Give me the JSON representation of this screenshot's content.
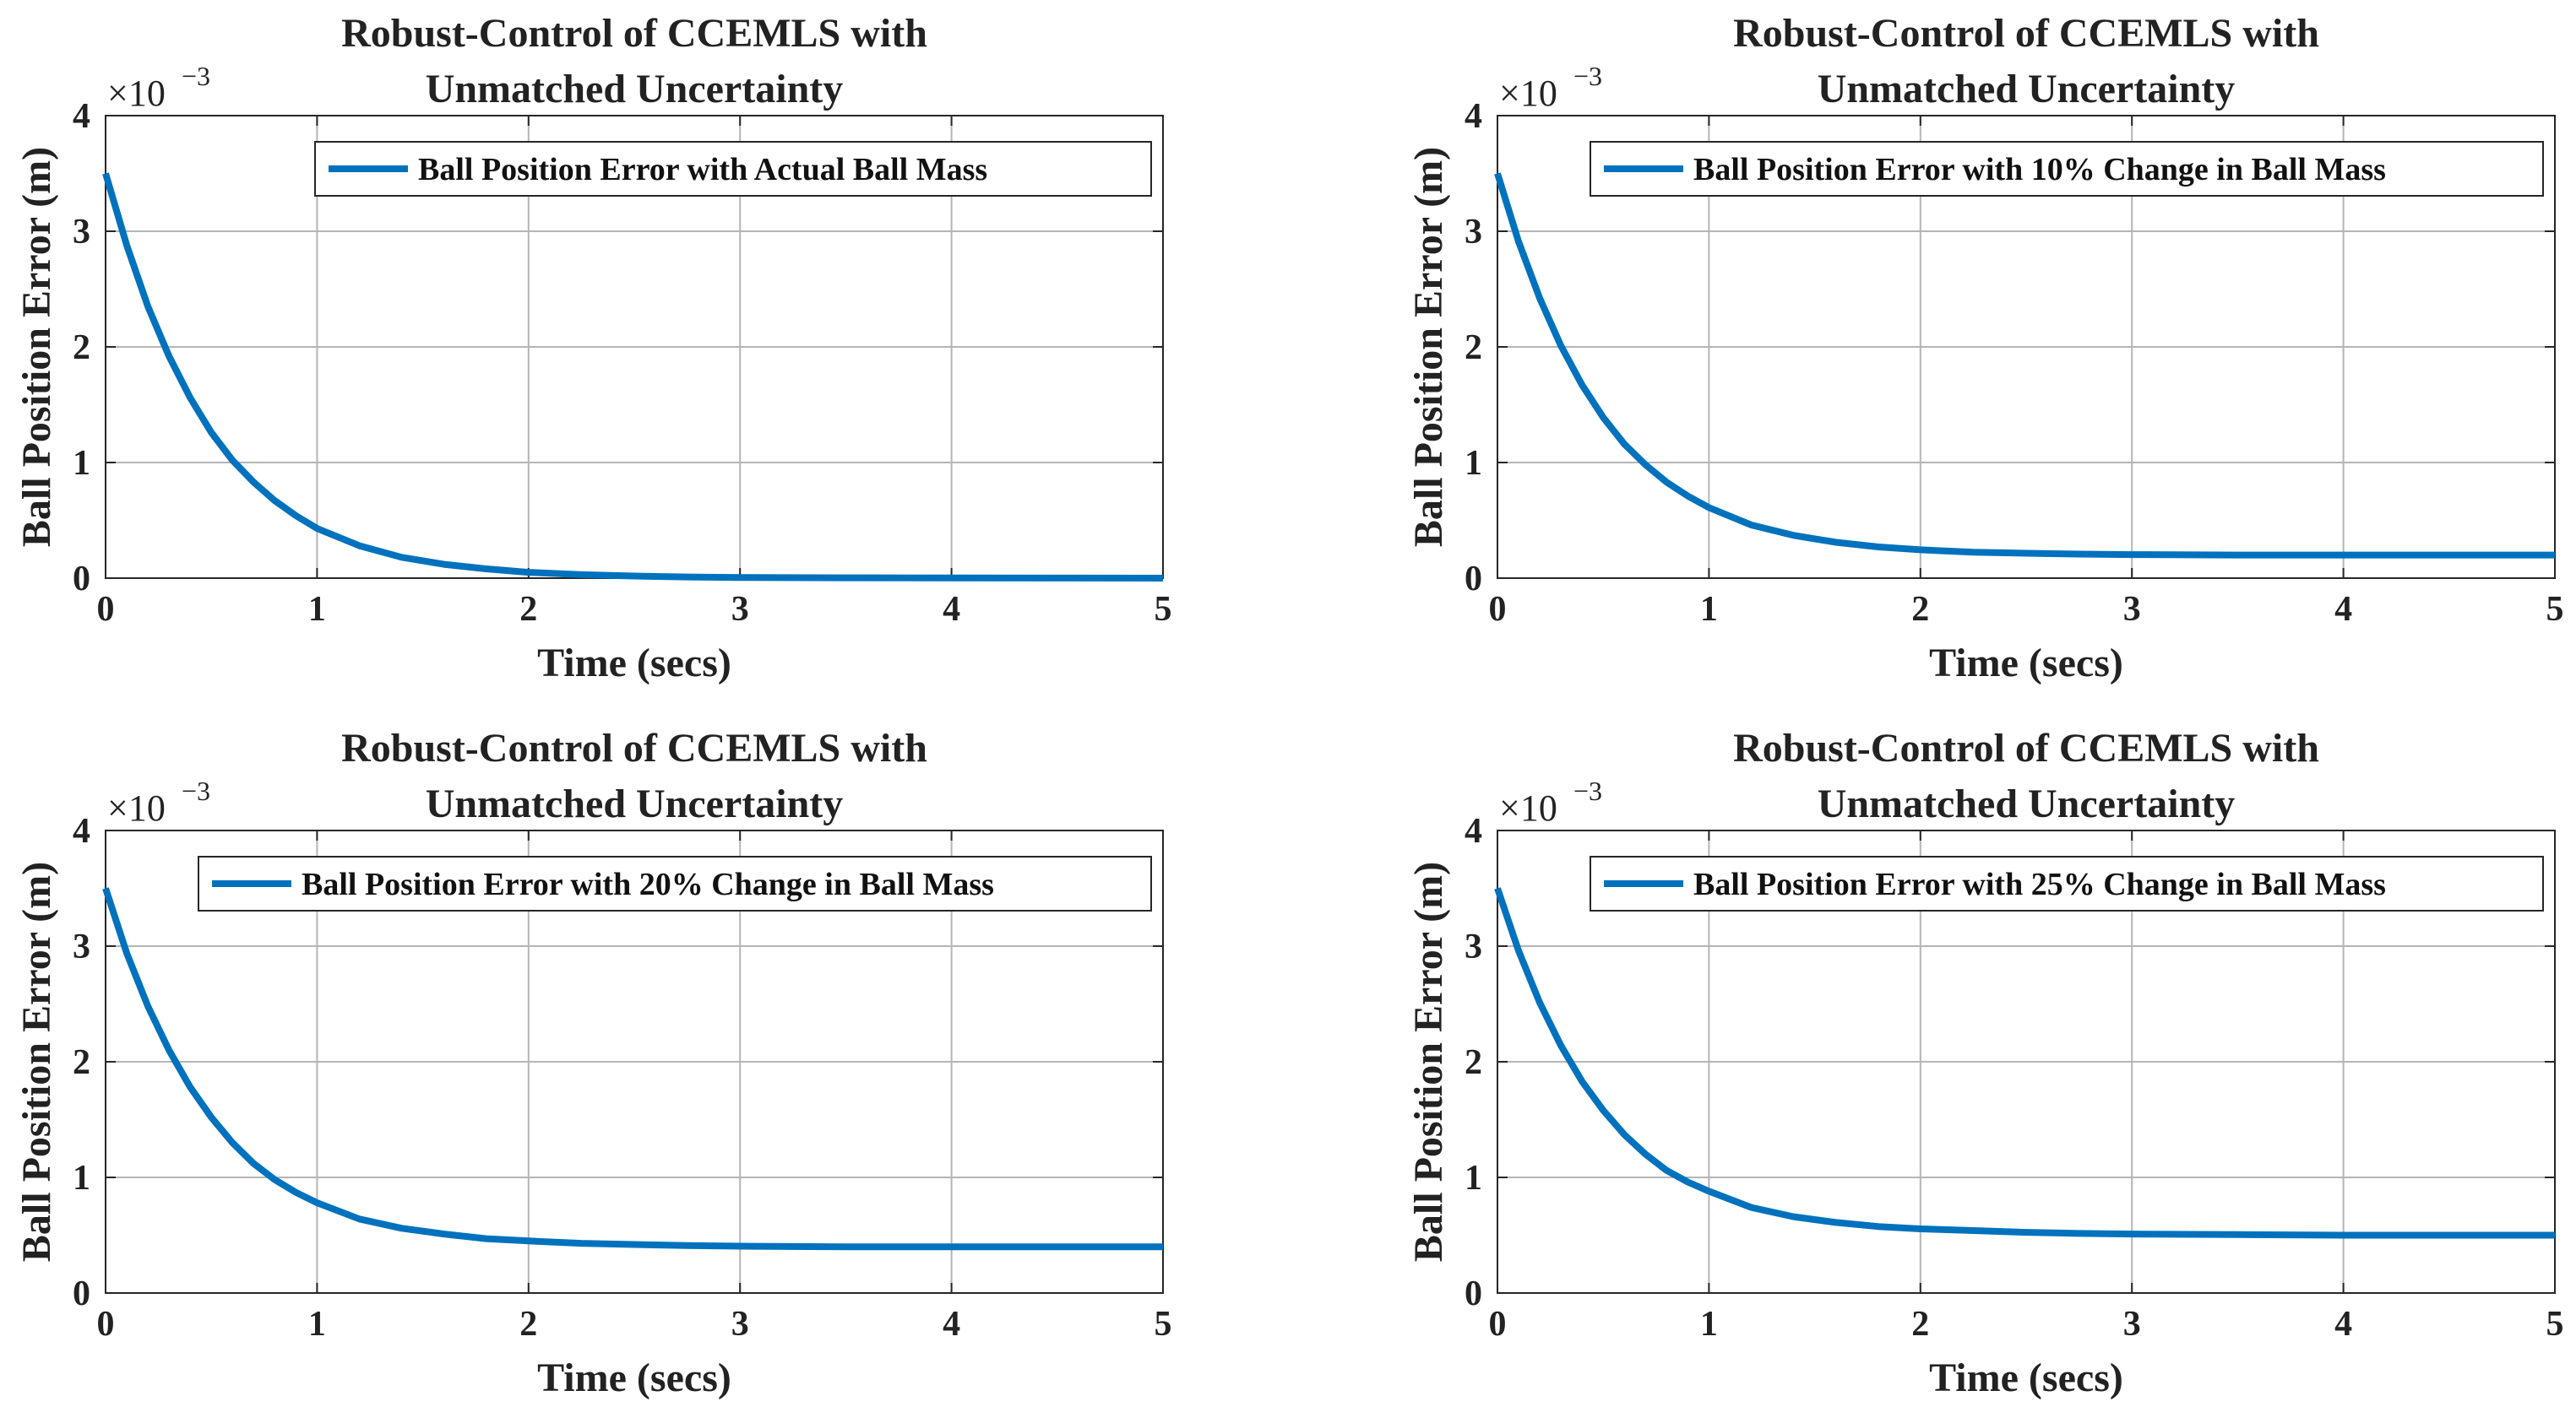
{
  "figure": {
    "line_color": "#0072BD"
  },
  "chart_data": [
    {
      "type": "line",
      "title_lines": [
        "Robust-Control of CCEMLS with",
        "Unmatched Uncertainty"
      ],
      "xlabel": "Time (secs)",
      "ylabel": "Ball Position Error (m)",
      "y_exponent_base": "×10",
      "y_exponent_power": "−3",
      "xlim": [
        0,
        5
      ],
      "ylim": [
        0,
        4
      ],
      "xticks": [
        "0",
        "1",
        "2",
        "3",
        "4",
        "5"
      ],
      "yticks": [
        "0",
        "1",
        "2",
        "3",
        "4"
      ],
      "grid": true,
      "legend_position": "top-right",
      "series": [
        {
          "name": "Ball Position Error with Actual Ball Mass",
          "x": [
            0,
            0.1,
            0.2,
            0.3,
            0.4,
            0.5,
            0.6,
            0.7,
            0.8,
            0.9,
            1.0,
            1.2,
            1.4,
            1.6,
            1.8,
            2.0,
            2.25,
            2.5,
            2.75,
            3.0,
            3.5,
            4.0,
            4.5,
            5.0
          ],
          "y": [
            3.5,
            2.88,
            2.35,
            1.92,
            1.56,
            1.26,
            1.02,
            0.83,
            0.67,
            0.54,
            0.43,
            0.28,
            0.18,
            0.12,
            0.08,
            0.05,
            0.03,
            0.018,
            0.01,
            0.006,
            0.003,
            0.002,
            0.001,
            0.0
          ]
        }
      ]
    },
    {
      "type": "line",
      "title_lines": [
        "Robust-Control of CCEMLS with",
        "Unmatched Uncertainty"
      ],
      "xlabel": "Time (secs)",
      "ylabel": "Ball Position Error (m)",
      "y_exponent_base": "×10",
      "y_exponent_power": "−3",
      "xlim": [
        0,
        5
      ],
      "ylim": [
        0,
        4
      ],
      "xticks": [
        "0",
        "1",
        "2",
        "3",
        "4",
        "5"
      ],
      "yticks": [
        "0",
        "1",
        "2",
        "3",
        "4"
      ],
      "grid": true,
      "legend_position": "top-right",
      "series": [
        {
          "name": "Ball Position Error with 10% Change in Ball Mass",
          "x": [
            0,
            0.1,
            0.2,
            0.3,
            0.4,
            0.5,
            0.6,
            0.7,
            0.8,
            0.9,
            1.0,
            1.2,
            1.4,
            1.6,
            1.8,
            2.0,
            2.25,
            2.5,
            2.75,
            3.0,
            3.5,
            4.0,
            4.5,
            5.0
          ],
          "y": [
            3.5,
            2.91,
            2.42,
            2.01,
            1.67,
            1.39,
            1.16,
            0.98,
            0.83,
            0.71,
            0.61,
            0.46,
            0.37,
            0.31,
            0.27,
            0.245,
            0.225,
            0.215,
            0.208,
            0.204,
            0.2,
            0.2,
            0.2,
            0.2
          ]
        }
      ]
    },
    {
      "type": "line",
      "title_lines": [
        "Robust-Control of CCEMLS with",
        "Unmatched Uncertainty"
      ],
      "xlabel": "Time (secs)",
      "ylabel": "Ball Position Error (m)",
      "y_exponent_base": "×10",
      "y_exponent_power": "−3",
      "xlim": [
        0,
        5
      ],
      "ylim": [
        0,
        4
      ],
      "xticks": [
        "0",
        "1",
        "2",
        "3",
        "4",
        "5"
      ],
      "yticks": [
        "0",
        "1",
        "2",
        "3",
        "4"
      ],
      "grid": true,
      "legend_position": "top-right",
      "series": [
        {
          "name": "Ball Position Error with 20% Change in Ball Mass",
          "x": [
            0,
            0.1,
            0.2,
            0.3,
            0.4,
            0.5,
            0.6,
            0.7,
            0.8,
            0.9,
            1.0,
            1.2,
            1.4,
            1.6,
            1.8,
            2.0,
            2.25,
            2.5,
            2.75,
            3.0,
            3.5,
            4.0,
            4.5,
            5.0
          ],
          "y": [
            3.5,
            2.94,
            2.48,
            2.1,
            1.78,
            1.52,
            1.3,
            1.12,
            0.98,
            0.87,
            0.78,
            0.64,
            0.56,
            0.51,
            0.47,
            0.45,
            0.43,
            0.42,
            0.41,
            0.405,
            0.4,
            0.4,
            0.4,
            0.4
          ]
        }
      ]
    },
    {
      "type": "line",
      "title_lines": [
        "Robust-Control of CCEMLS with",
        "Unmatched Uncertainty"
      ],
      "xlabel": "Time (secs)",
      "ylabel": "Ball Position Error (m)",
      "y_exponent_base": "×10",
      "y_exponent_power": "−3",
      "xlim": [
        0,
        5
      ],
      "ylim": [
        0,
        4
      ],
      "xticks": [
        "0",
        "1",
        "2",
        "3",
        "4",
        "5"
      ],
      "yticks": [
        "0",
        "1",
        "2",
        "3",
        "4"
      ],
      "grid": true,
      "legend_position": "top-right",
      "series": [
        {
          "name": "Ball Position Error with 25% Change in Ball Mass",
          "x": [
            0,
            0.1,
            0.2,
            0.3,
            0.4,
            0.5,
            0.6,
            0.7,
            0.8,
            0.9,
            1.0,
            1.2,
            1.4,
            1.6,
            1.8,
            2.0,
            2.25,
            2.5,
            2.75,
            3.0,
            3.5,
            4.0,
            4.5,
            5.0
          ],
          "y": [
            3.5,
            2.96,
            2.51,
            2.14,
            1.83,
            1.58,
            1.37,
            1.2,
            1.06,
            0.96,
            0.88,
            0.74,
            0.66,
            0.61,
            0.575,
            0.555,
            0.54,
            0.525,
            0.515,
            0.51,
            0.505,
            0.5,
            0.5,
            0.5
          ]
        }
      ]
    }
  ]
}
